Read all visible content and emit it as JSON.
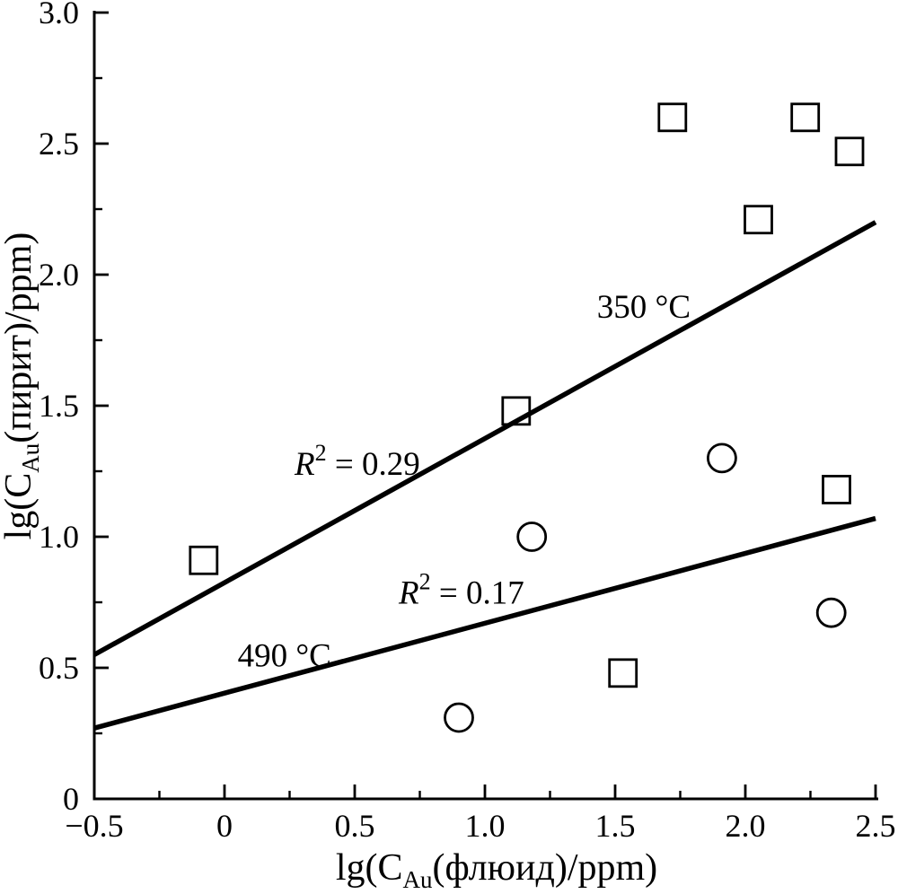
{
  "figure": {
    "background": "#ffffff",
    "ink_color": "#000000"
  },
  "chart_data": {
    "type": "scatter",
    "title": "",
    "xlabel_parts": {
      "prefix": "lg(C",
      "sub": "Au",
      "suffix": "(флюид)/ppm)"
    },
    "ylabel_parts": {
      "prefix": "lg(C",
      "sub": "Au",
      "suffix": "(пирит)/ppm)"
    },
    "xlim": [
      -0.5,
      2.5
    ],
    "ylim": [
      0,
      3.0
    ],
    "grid": false,
    "legend": "none",
    "x_ticks": {
      "values": [
        -0.5,
        0,
        0.5,
        1.0,
        1.5,
        2.0,
        2.5
      ],
      "labels": [
        "−0.5",
        "0",
        "0.5",
        "1.0",
        "1.5",
        "2.0",
        "2.5"
      ]
    },
    "y_ticks": {
      "values": [
        0,
        0.5,
        1.0,
        1.5,
        2.0,
        2.5,
        3.0
      ],
      "labels": [
        "0",
        "0.5",
        "1.0",
        "1.5",
        "2.0",
        "2.5",
        "3.0"
      ]
    },
    "minor_tick_step": 0.25,
    "series": [
      {
        "name": "350 °C",
        "marker": "square",
        "points": [
          [
            -0.08,
            0.91
          ],
          [
            1.12,
            1.48
          ],
          [
            1.53,
            0.48
          ],
          [
            1.72,
            2.6
          ],
          [
            2.05,
            2.21
          ],
          [
            2.23,
            2.6
          ],
          [
            2.35,
            1.18
          ],
          [
            2.4,
            2.47
          ]
        ]
      },
      {
        "name": "490 °C",
        "marker": "circle",
        "points": [
          [
            0.9,
            0.31
          ],
          [
            1.18,
            1.0
          ],
          [
            1.91,
            1.3
          ],
          [
            2.33,
            0.71
          ]
        ]
      }
    ],
    "trend_lines": [
      {
        "name": "350 °C",
        "x": [
          -0.5,
          2.5
        ],
        "y": [
          0.55,
          2.2
        ]
      },
      {
        "name": "490 °C",
        "x": [
          -0.5,
          2.5
        ],
        "y": [
          0.27,
          1.07
        ]
      }
    ],
    "annotations": [
      {
        "id": "label-350c",
        "text": "350 °C",
        "x": 1.61,
        "y": 1.88
      },
      {
        "id": "label-490c",
        "text": "490 °C",
        "x": 0.23,
        "y": 0.55
      },
      {
        "id": "r-squared-350",
        "r": "R",
        "sup": "2",
        "rest": " = 0.29",
        "x": 0.51,
        "y": 1.28
      },
      {
        "id": "r-squared-490",
        "r": "R",
        "sup": "2",
        "rest": " = 0.17",
        "x": 0.91,
        "y": 0.79
      }
    ]
  }
}
